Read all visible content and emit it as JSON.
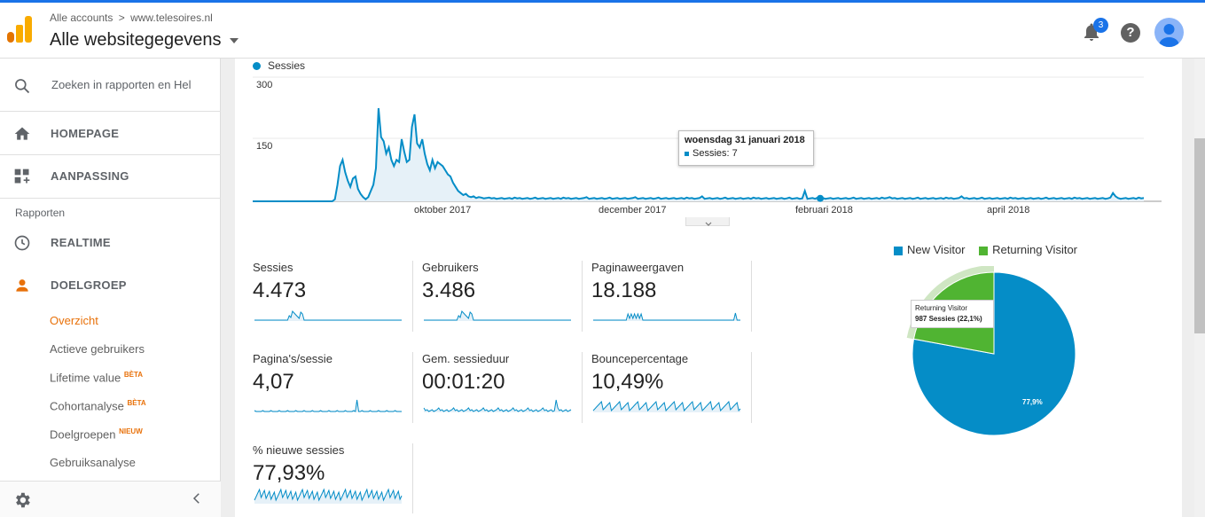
{
  "header": {
    "breadcrumb_root": "Alle accounts",
    "breadcrumb_separator": ">",
    "breadcrumb_site": "www.telesoires.nl",
    "account_title": "Alle websitegegevens",
    "notification_count": "3",
    "help_label": "?"
  },
  "sidebar": {
    "search_placeholder": "Zoeken in rapporten en Hel",
    "nav_home": "HOMEPAGE",
    "nav_custom": "AANPASSING",
    "section_reports": "Rapporten",
    "nav_realtime": "REALTIME",
    "nav_audience": "DOELGROEP",
    "sub_items": [
      {
        "label": "Overzicht",
        "badge": ""
      },
      {
        "label": "Actieve gebruikers",
        "badge": ""
      },
      {
        "label": "Lifetime value",
        "badge": "BÈTA"
      },
      {
        "label": "Cohortanalyse",
        "badge": "BÈTA"
      },
      {
        "label": "Doelgroepen",
        "badge": "NIEUW"
      },
      {
        "label": "Gebruiksanalyse",
        "badge": ""
      }
    ]
  },
  "chart_data": {
    "type": "line",
    "series": [
      {
        "name": "Sessies",
        "color": "#058dc7"
      }
    ],
    "yticks": [
      "300",
      "150"
    ],
    "ylim": [
      0,
      300
    ],
    "xticks": [
      "oktober 2017",
      "december 2017",
      "februari 2018",
      "april 2018"
    ],
    "tooltip_date": "woensdag 31 januari 2018",
    "tooltip_value": "Sessies: 7",
    "values": [
      0,
      0,
      0,
      0,
      0,
      0,
      0,
      0,
      0,
      0,
      0,
      0,
      0,
      0,
      0,
      0,
      0,
      0,
      0,
      0,
      0,
      0,
      0,
      0,
      0,
      0,
      0,
      0,
      0,
      0,
      0,
      0,
      5,
      40,
      85,
      100,
      70,
      50,
      35,
      55,
      60,
      30,
      18,
      10,
      5,
      10,
      25,
      40,
      80,
      225,
      155,
      145,
      115,
      130,
      100,
      85,
      100,
      95,
      150,
      120,
      95,
      100,
      180,
      210,
      140,
      130,
      150,
      115,
      90,
      75,
      100,
      80,
      95,
      90,
      85,
      75,
      65,
      60,
      45,
      35,
      25,
      20,
      15,
      18,
      12,
      10,
      12,
      8,
      10,
      9,
      7,
      8,
      9,
      7,
      8,
      6,
      7,
      8,
      6,
      7,
      8,
      6,
      9,
      7,
      8,
      6,
      7,
      8,
      6,
      7,
      9,
      6,
      7,
      8,
      6,
      7,
      8,
      6,
      7,
      8,
      6,
      9,
      7,
      8,
      6,
      7,
      8,
      6,
      7,
      8,
      10,
      6,
      7,
      8,
      6,
      7,
      8,
      6,
      7,
      9,
      6,
      7,
      8,
      6,
      7,
      8,
      6,
      7,
      8,
      10,
      6,
      7,
      8,
      6,
      7,
      8,
      6,
      7,
      9,
      6,
      7,
      8,
      6,
      7,
      8,
      6,
      7,
      8,
      6,
      9,
      7,
      8,
      6,
      7,
      8,
      12,
      6,
      7,
      8,
      6,
      7,
      8,
      6,
      7,
      9,
      6,
      7,
      8,
      6,
      7,
      8,
      6,
      7,
      8,
      6,
      9,
      7,
      8,
      6,
      7,
      8,
      6,
      7,
      8,
      6,
      7,
      8,
      6,
      7,
      9,
      6,
      7,
      8,
      6,
      7,
      25,
      6,
      7,
      8,
      6,
      9,
      7,
      8,
      6,
      7,
      8,
      6,
      7,
      8,
      6,
      7,
      8,
      6,
      7,
      9,
      6,
      7,
      8,
      6,
      7,
      8,
      6,
      7,
      8,
      6,
      9,
      7,
      8,
      10,
      7,
      8,
      6,
      7,
      8,
      6,
      7,
      8,
      6,
      7,
      9,
      6,
      7,
      8,
      6,
      7,
      8,
      6,
      7,
      8,
      6,
      9,
      7,
      8,
      6,
      7,
      8,
      12,
      7,
      8,
      6,
      7,
      8,
      6,
      7,
      9,
      6,
      7,
      8,
      6,
      7,
      8,
      6,
      7,
      8,
      6,
      9,
      7,
      8,
      6,
      7,
      8,
      6,
      7,
      8,
      6,
      7,
      8,
      6,
      7,
      9,
      6,
      7,
      8,
      6,
      7,
      8,
      6,
      7,
      8,
      6,
      9,
      7,
      8,
      6,
      7,
      8,
      6,
      7,
      8,
      6,
      7,
      8,
      6,
      7,
      9,
      20,
      12,
      8,
      6,
      7,
      8,
      6,
      7,
      8,
      6,
      9,
      7,
      8
    ]
  },
  "metrics": [
    {
      "label": "Sessies",
      "value": "4.473",
      "spark": "sess"
    },
    {
      "label": "Gebruikers",
      "value": "3.486",
      "spark": "sess"
    },
    {
      "label": "Paginaweergaven",
      "value": "18.188",
      "spark": "pv"
    },
    {
      "label": "Pagina's/sessie",
      "value": "4,07",
      "spark": "flat"
    },
    {
      "label": "Gem. sessieduur",
      "value": "00:01:20",
      "spark": "dur"
    },
    {
      "label": "Bouncepercentage",
      "value": "10,49%",
      "spark": "bounce"
    },
    {
      "label": "% nieuwe sessies",
      "value": "77,93%",
      "spark": "new"
    }
  ],
  "pie": {
    "legend": [
      {
        "label": "New Visitor",
        "color": "#058dc7"
      },
      {
        "label": "Returning Visitor",
        "color": "#50b432"
      }
    ],
    "new_fraction": 0.779,
    "returning_fraction": 0.221,
    "tooltip_title": "Returning Visitor",
    "tooltip_value": "987 Sessies (22,1%)",
    "new_pct_label": "77,9%"
  }
}
